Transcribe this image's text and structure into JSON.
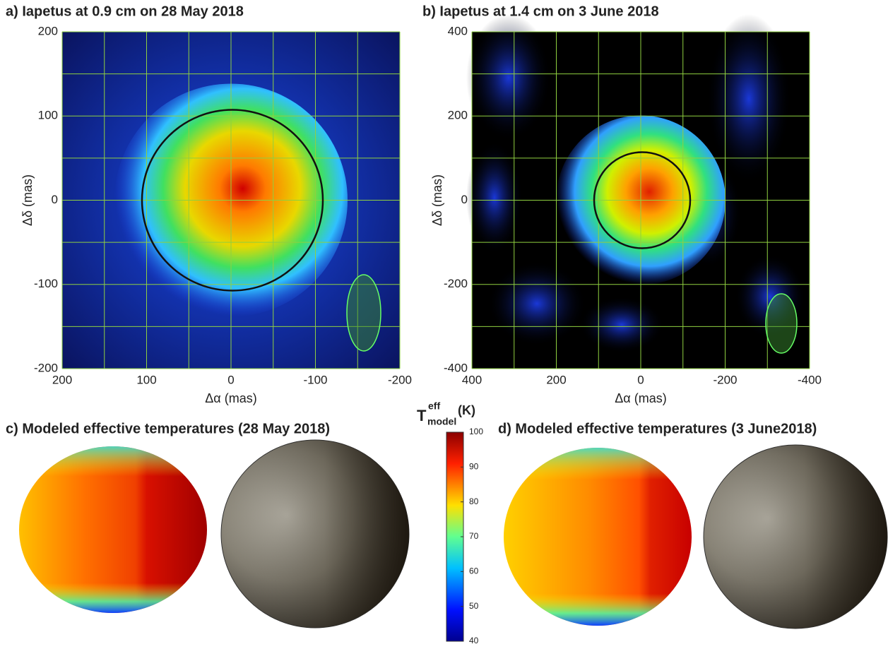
{
  "chart_data": [
    {
      "type": "map",
      "title": "a) Iapetus at 0.9 cm on 28 May 2018",
      "x_label": "Δα (mas)",
      "y_label": "Δδ (mas)",
      "xlim": [
        200,
        -200
      ],
      "ylim": [
        -200,
        200
      ],
      "xticks": [
        200,
        100,
        0,
        -100,
        -200
      ],
      "yticks": [
        -200,
        -100,
        0,
        100,
        200
      ],
      "x_minor_ticks": [
        150,
        50,
        -50,
        -150
      ],
      "y_minor_ticks": [
        -150,
        -50,
        50,
        150
      ],
      "grid": true
    },
    {
      "type": "map",
      "title": "b) Iapetus at 1.4 cm on 3 June 2018",
      "x_label": "Δα (mas)",
      "y_label": "Δδ (mas)",
      "xlim": [
        400,
        -400
      ],
      "ylim": [
        -400,
        400
      ],
      "xticks": [
        400,
        200,
        0,
        -200,
        -400
      ],
      "yticks": [
        -400,
        -200,
        0,
        200,
        400
      ],
      "x_minor_ticks": [
        300,
        100,
        -100,
        -300
      ],
      "y_minor_ticks": [
        -300,
        -100,
        100,
        300
      ],
      "grid": true
    },
    {
      "type": "colorbar",
      "label": "T",
      "label_sup": "eff",
      "label_sub": "model",
      "unit": "(K)",
      "ylim": [
        40,
        100
      ],
      "yticks": [
        40,
        50,
        60,
        70,
        80,
        90,
        100
      ]
    },
    {
      "type": "globes",
      "title": "c) Modeled effective temperatures (28 May 2018)"
    },
    {
      "type": "globes",
      "title": "d) Modeled effective temperatures (3 June2018)"
    }
  ]
}
